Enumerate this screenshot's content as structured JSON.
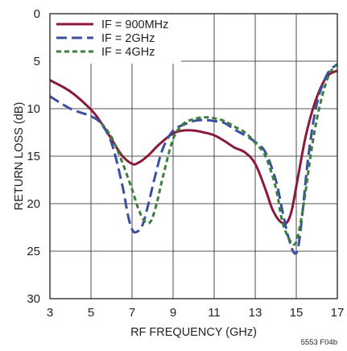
{
  "chart_data": {
    "type": "line",
    "xlabel": "RF FREQUENCY (GHz)",
    "ylabel": "RETURN LOSS (dB)",
    "xlim": [
      3,
      17
    ],
    "ylim": [
      0,
      30
    ],
    "y_inverted": true,
    "xticks": [
      3,
      5,
      7,
      9,
      11,
      13,
      15,
      17
    ],
    "yticks": [
      0,
      5,
      10,
      15,
      20,
      25,
      30
    ],
    "grid": true,
    "legend_position": "top-left",
    "figure_code": "5553 F04b",
    "series": [
      {
        "name": "IF = 900MHz",
        "color": "#8b1a3a",
        "dash": "solid",
        "x": [
          3,
          4,
          5,
          5.5,
          6,
          6.5,
          7,
          7.3,
          7.8,
          8.3,
          9,
          9.5,
          10,
          10.5,
          11,
          11.5,
          12,
          12.5,
          13,
          13.5,
          13.8,
          14.1,
          14.4,
          14.6,
          14.8,
          15.1,
          15.5,
          16,
          16.5,
          17
        ],
        "y": [
          7,
          8.2,
          10.1,
          11.5,
          13.2,
          14.9,
          15.8,
          15.7,
          14.9,
          13.8,
          12.6,
          12.3,
          12.3,
          12.5,
          12.8,
          13.4,
          14.1,
          14.6,
          15.8,
          18.5,
          20.4,
          21.6,
          22.1,
          21.8,
          20.5,
          17,
          12.5,
          8.8,
          6.6,
          6
        ]
      },
      {
        "name": "IF = 2GHz",
        "color": "#3a4fa1",
        "dash": "long",
        "x": [
          3,
          4,
          5,
          5.5,
          6,
          6.5,
          6.8,
          7,
          7.2,
          7.5,
          7.8,
          8.1,
          8.5,
          9,
          9.5,
          10,
          10.5,
          11,
          11.5,
          12,
          12.5,
          13,
          13.5,
          14,
          14.3,
          14.6,
          14.9,
          15.1,
          15.3,
          15.6,
          16,
          16.5,
          17
        ],
        "y": [
          8.7,
          10,
          10.8,
          11.6,
          13.6,
          17.8,
          21.2,
          22.7,
          23,
          22.3,
          20,
          17.3,
          14.2,
          12.3,
          11.7,
          11.3,
          11.2,
          11.3,
          11.5,
          12.2,
          12.8,
          13.5,
          14.6,
          17.5,
          20.5,
          23.4,
          25.2,
          24.5,
          21,
          14.8,
          9.5,
          6.4,
          5.3
        ]
      },
      {
        "name": "IF = 4GHz",
        "color": "#3b7e3e",
        "dash": "short",
        "x": [
          5.5,
          6,
          6.5,
          7,
          7.3,
          7.6,
          7.9,
          8.2,
          8.5,
          9,
          9.5,
          10,
          10.5,
          11,
          11.5,
          12,
          12.5,
          13,
          13.5,
          14,
          14.3,
          14.6,
          14.9,
          15.1,
          15.4,
          15.8,
          16.2,
          16.6,
          17
        ],
        "y": [
          11.5,
          13,
          15.5,
          18.5,
          20.5,
          21.8,
          21.9,
          20,
          17.2,
          13.2,
          11.6,
          11.1,
          10.9,
          11,
          11.3,
          11.9,
          12.5,
          13.6,
          15,
          18.3,
          21.7,
          23.5,
          24.3,
          23.2,
          19.5,
          13.5,
          9.2,
          6.4,
          5.3
        ]
      }
    ]
  }
}
